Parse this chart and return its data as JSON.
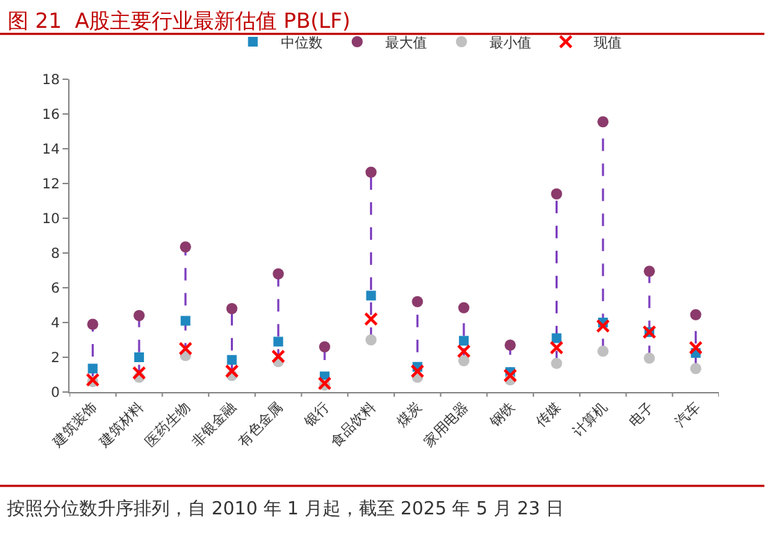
{
  "chart_data": {
    "type": "scatter",
    "title": "图 21  A股主要行业最新估值 PB(LF)",
    "categories": [
      "建筑装饰",
      "建筑材料",
      "医药生物",
      "非银金融",
      "有色金属",
      "银行",
      "食品饮料",
      "煤炭",
      "家用电器",
      "钢铁",
      "传媒",
      "计算机",
      "电子",
      "汽车"
    ],
    "series": [
      {
        "name": "中位数",
        "color": "#1f88c0",
        "marker": "square",
        "values": [
          1.35,
          2.0,
          4.1,
          1.85,
          2.9,
          0.9,
          5.55,
          1.45,
          2.95,
          1.15,
          3.1,
          4.0,
          3.45,
          2.25
        ]
      },
      {
        "name": "最大值",
        "color": "#8b3a6b",
        "marker": "circle",
        "values": [
          3.9,
          4.4,
          8.35,
          4.8,
          6.8,
          2.6,
          12.65,
          5.2,
          4.85,
          2.7,
          11.4,
          15.55,
          6.95,
          4.45
        ]
      },
      {
        "name": "最小值",
        "color": "#c0c0c0",
        "marker": "circle",
        "values": [
          0.6,
          0.85,
          2.1,
          0.95,
          1.75,
          0.4,
          3.0,
          0.85,
          1.8,
          0.7,
          1.65,
          2.35,
          1.95,
          1.35
        ]
      },
      {
        "name": "现值",
        "color": "#ff0000",
        "marker": "cross",
        "values": [
          0.7,
          1.1,
          2.5,
          1.2,
          2.05,
          0.5,
          4.2,
          1.2,
          2.35,
          0.95,
          2.55,
          3.8,
          3.45,
          2.55
        ]
      }
    ],
    "ylim": [
      0,
      18
    ],
    "yticks": [
      0,
      2,
      4,
      6,
      8,
      10,
      12,
      14,
      16,
      18
    ],
    "legend": "top",
    "annotations": [
      "按照分位数升序排列，自 2010 年 1 月起，截至 2025 年 5 月 23 日"
    ]
  }
}
